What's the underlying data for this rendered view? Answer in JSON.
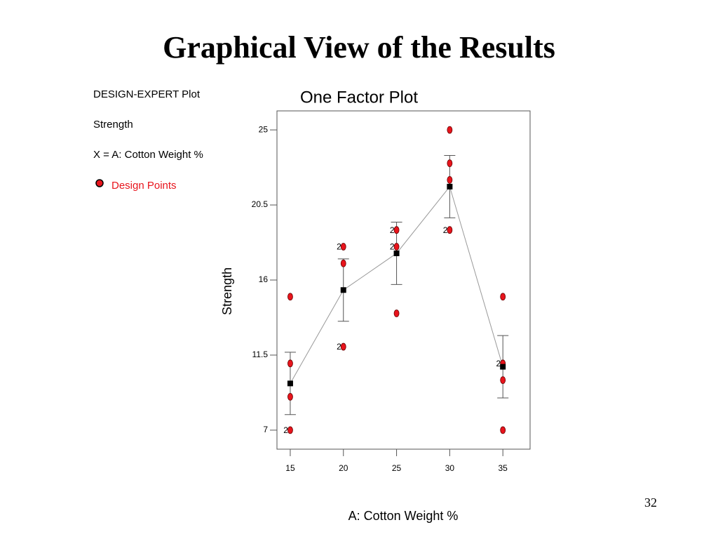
{
  "header": {
    "title": "Graphical View of the Results"
  },
  "slide_number": 32,
  "chart_data": {
    "type": "scatter",
    "title": "One Factor Plot",
    "info_lines": [
      "DESIGN-EXPERT Plot",
      "Strength",
      "X = A: Cotton Weight %"
    ],
    "x_label": "A: Cotton Weight %",
    "y_label": "Strength",
    "xlim": [
      13.75,
      37.56
    ],
    "ylim": [
      5.86,
      26.14
    ],
    "xticks": [
      15,
      20,
      25,
      30,
      35
    ],
    "yticks": [
      7,
      11.5,
      16,
      20.5,
      25
    ],
    "series": [
      {
        "name": "Design Points",
        "color": "#e8141c",
        "x": [
          15,
          15,
          15,
          15,
          20,
          20,
          20,
          25,
          25,
          25,
          30,
          30,
          30,
          30,
          35,
          35,
          35,
          35
        ],
        "values": [
          7,
          9,
          11,
          15,
          12,
          17,
          18,
          14,
          18,
          19,
          19,
          22,
          23,
          25,
          7,
          10,
          11,
          15
        ],
        "count_labels": [
          2,
          null,
          null,
          null,
          2,
          null,
          2,
          null,
          2,
          2,
          2,
          null,
          null,
          null,
          null,
          null,
          2,
          null
        ]
      }
    ],
    "means": {
      "color": "#000000",
      "line_color": "#999999",
      "x": [
        15,
        20,
        25,
        30,
        35
      ],
      "values": [
        9.8,
        15.4,
        17.6,
        21.6,
        10.8
      ],
      "errors": [
        1.87,
        1.87,
        1.87,
        1.87,
        1.87
      ]
    }
  }
}
